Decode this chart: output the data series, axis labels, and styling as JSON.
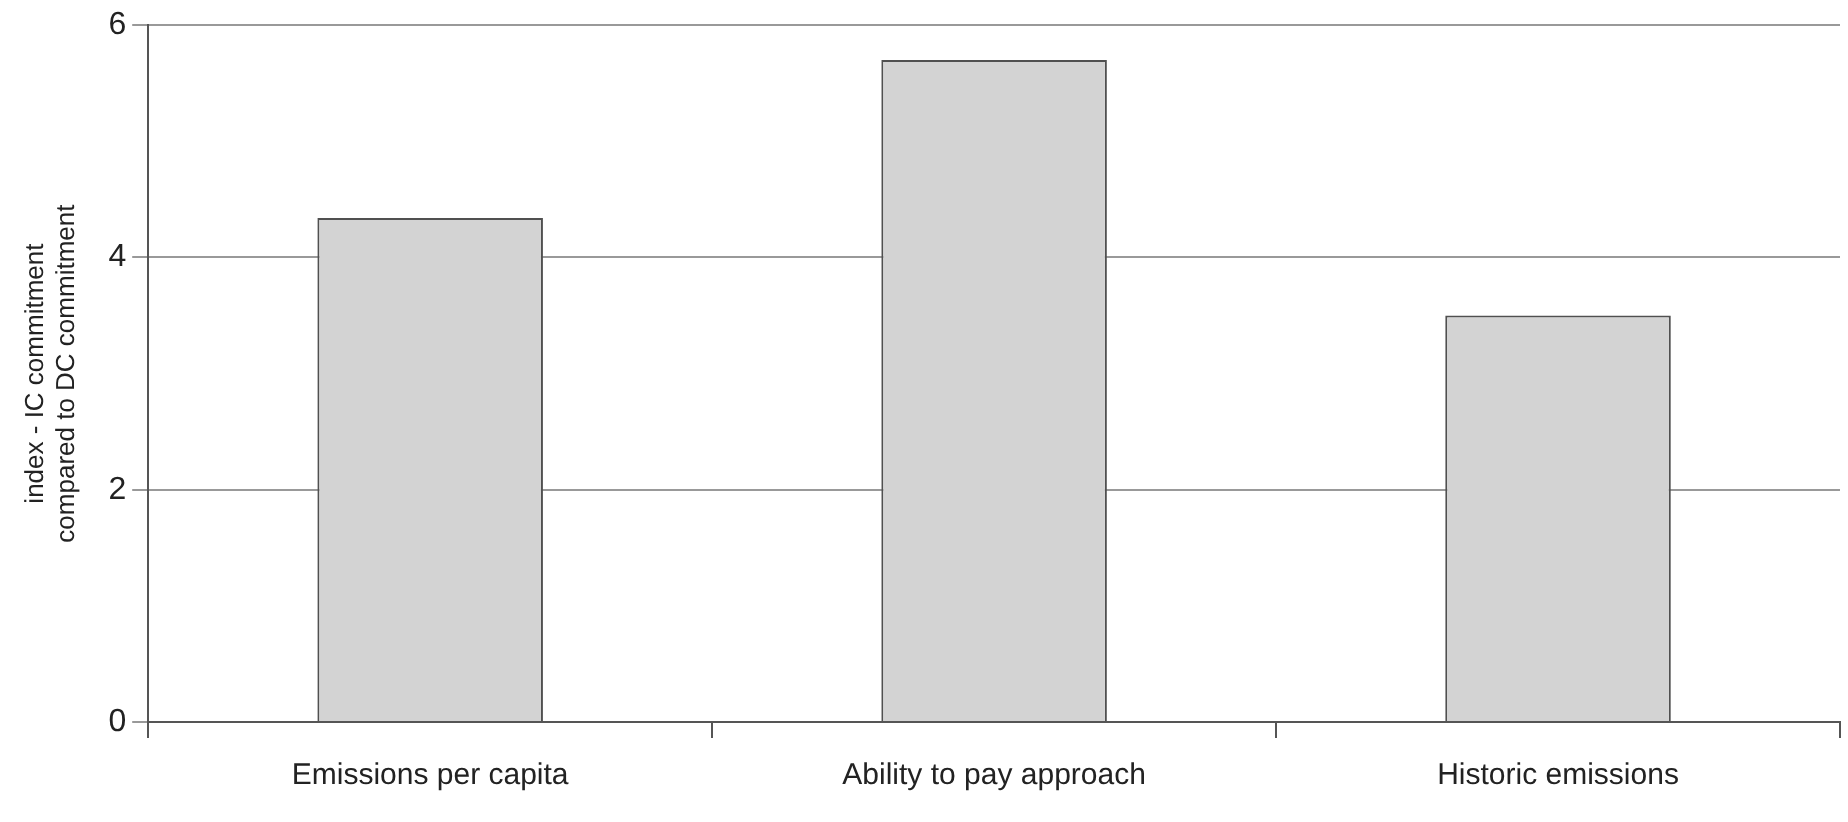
{
  "chart_data": {
    "type": "bar",
    "ylabel": "index - IC commitment\ncompared to DC commitment",
    "categories": [
      "Emissions per capita",
      "Ability to pay approach",
      "Historic emissions"
    ],
    "values": [
      4.34,
      5.7,
      3.5
    ],
    "color": "#d3d3d3",
    "ylim": [
      0,
      6
    ],
    "yticks": [
      0,
      2,
      4,
      6
    ],
    "grid": "y"
  }
}
